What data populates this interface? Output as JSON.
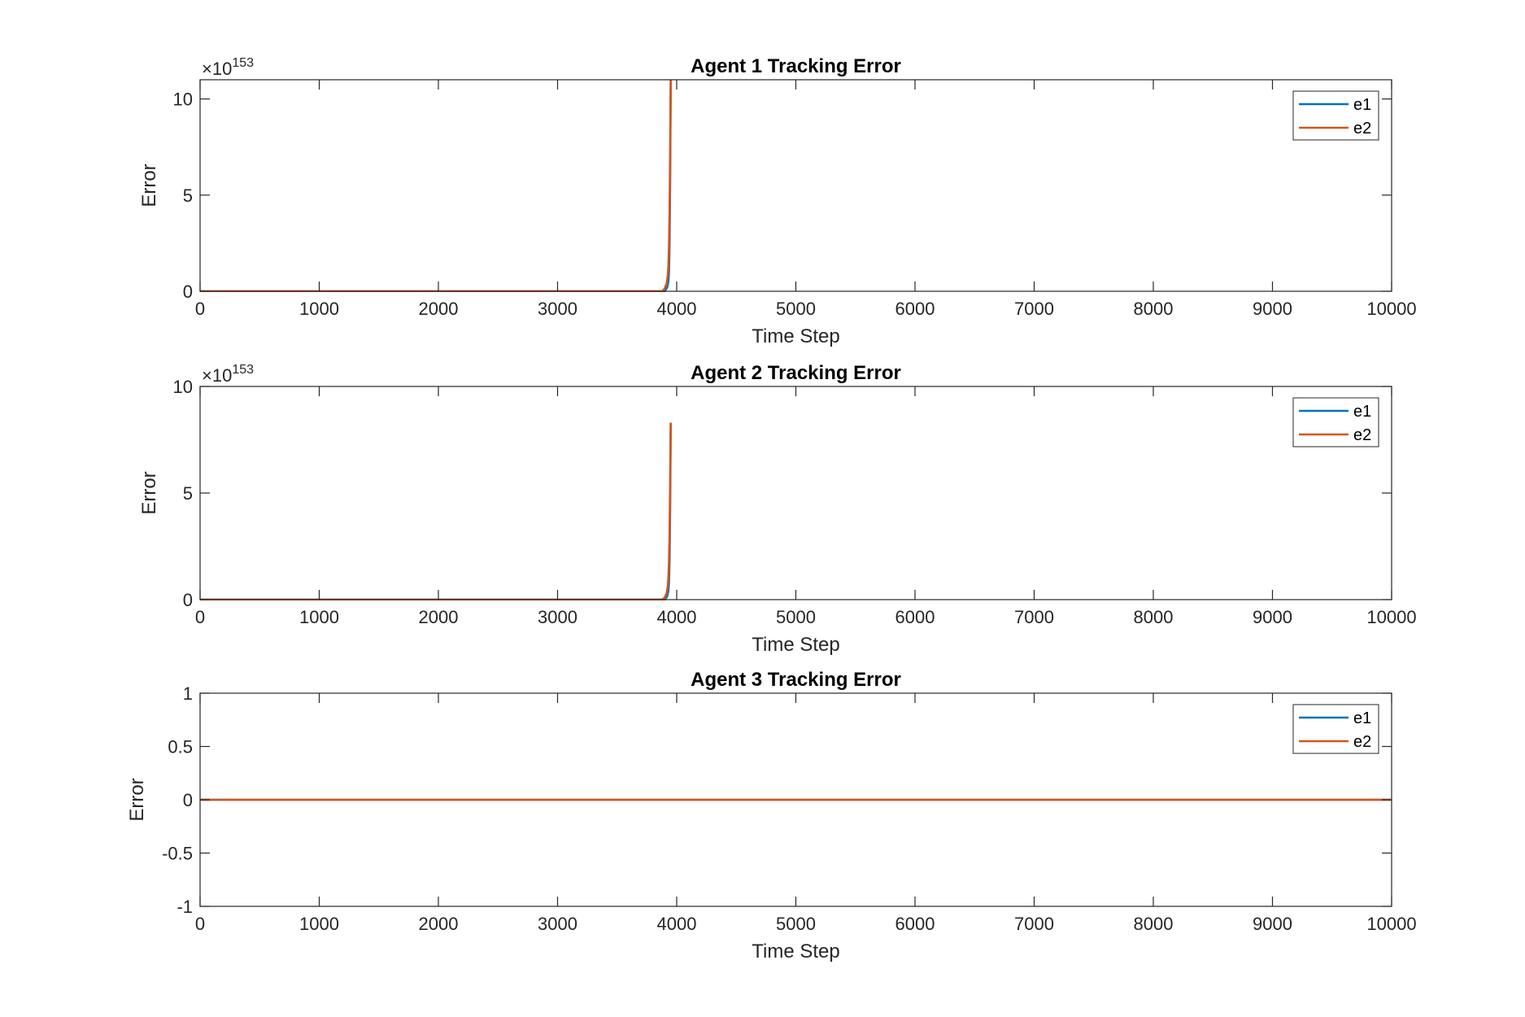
{
  "colors": {
    "e1": "#0072BD",
    "e2": "#D95319",
    "axis": "#262626",
    "background": "#ffffff"
  },
  "chart_data": [
    {
      "type": "line",
      "title": "Agent 1 Tracking Error",
      "xlabel": "Time Step",
      "ylabel": "Error",
      "xlim": [
        0,
        10000
      ],
      "ylim": [
        0,
        11
      ],
      "xticks": [
        0,
        1000,
        2000,
        3000,
        4000,
        5000,
        6000,
        7000,
        8000,
        9000,
        10000
      ],
      "xtick_labels": [
        "0",
        "1000",
        "2000",
        "3000",
        "4000",
        "5000",
        "6000",
        "7000",
        "8000",
        "9000",
        "10000"
      ],
      "yticks": [
        0,
        5,
        10
      ],
      "ytick_labels": [
        "0",
        "5",
        "10"
      ],
      "y_exponent": {
        "base": "×10",
        "power": "153"
      },
      "legend": {
        "position": "top-right",
        "entries": [
          "e1",
          "e2"
        ]
      },
      "grid": false,
      "series": [
        {
          "name": "e1",
          "x": [
            0,
            3900,
            3920,
            3930,
            3935,
            3940,
            3945,
            3950
          ],
          "y": [
            0,
            0,
            0.2,
            0.5,
            1.0,
            2.4,
            5.6,
            11
          ]
        },
        {
          "name": "e2",
          "x": [
            0,
            3880,
            3900,
            3915,
            3925,
            3930,
            3935,
            3940,
            3945,
            3950
          ],
          "y": [
            0,
            0,
            0.15,
            0.4,
            0.8,
            1.3,
            2.2,
            4.0,
            7.0,
            11
          ]
        }
      ]
    },
    {
      "type": "line",
      "title": "Agent 2 Tracking Error",
      "xlabel": "Time Step",
      "ylabel": "Error",
      "xlim": [
        0,
        10000
      ],
      "ylim": [
        0,
        10
      ],
      "xticks": [
        0,
        1000,
        2000,
        3000,
        4000,
        5000,
        6000,
        7000,
        8000,
        9000,
        10000
      ],
      "xtick_labels": [
        "0",
        "1000",
        "2000",
        "3000",
        "4000",
        "5000",
        "6000",
        "7000",
        "8000",
        "9000",
        "10000"
      ],
      "yticks": [
        0,
        5,
        10
      ],
      "ytick_labels": [
        "0",
        "5",
        "10"
      ],
      "y_exponent": {
        "base": "×10",
        "power": "153"
      },
      "legend": {
        "position": "top-right",
        "entries": [
          "e1",
          "e2"
        ]
      },
      "grid": false,
      "series": [
        {
          "name": "e1",
          "x": [
            0,
            3900,
            3920,
            3930,
            3935,
            3940,
            3945,
            3950
          ],
          "y": [
            0,
            0,
            0.15,
            0.4,
            0.8,
            1.8,
            4.2,
            8.3
          ]
        },
        {
          "name": "e2",
          "x": [
            0,
            3880,
            3900,
            3915,
            3925,
            3930,
            3935,
            3940,
            3945,
            3950
          ],
          "y": [
            0,
            0,
            0.1,
            0.3,
            0.6,
            1.0,
            1.7,
            3.0,
            5.3,
            8.3
          ]
        }
      ]
    },
    {
      "type": "line",
      "title": "Agent 3 Tracking Error",
      "xlabel": "Time Step",
      "ylabel": "Error",
      "xlim": [
        0,
        10000
      ],
      "ylim": [
        -1,
        1
      ],
      "xticks": [
        0,
        1000,
        2000,
        3000,
        4000,
        5000,
        6000,
        7000,
        8000,
        9000,
        10000
      ],
      "xtick_labels": [
        "0",
        "1000",
        "2000",
        "3000",
        "4000",
        "5000",
        "6000",
        "7000",
        "8000",
        "9000",
        "10000"
      ],
      "yticks": [
        -1,
        -0.5,
        0,
        0.5,
        1
      ],
      "ytick_labels": [
        "-1",
        "-0.5",
        "0",
        "0.5",
        "1"
      ],
      "legend": {
        "position": "top-right",
        "entries": [
          "e1",
          "e2"
        ]
      },
      "grid": false,
      "series": [
        {
          "name": "e1",
          "x": [
            0,
            10000
          ],
          "y": [
            0,
            0
          ]
        },
        {
          "name": "e2",
          "x": [
            0,
            10000
          ],
          "y": [
            0,
            0
          ]
        }
      ]
    }
  ]
}
